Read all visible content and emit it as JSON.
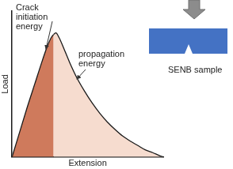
{
  "chart_data": {
    "type": "line",
    "x_label": "Extension",
    "y_label": "Load",
    "xlim": [
      0,
      10
    ],
    "ylim": [
      0,
      10
    ],
    "tick_labels": false,
    "grid": false,
    "series": [
      {
        "color": "#cf7a5c",
        "x": [
          0,
          0.5,
          1,
          1.5,
          2,
          2.3,
          2.6,
          2.75
        ],
        "values": [
          0,
          1.7,
          3.4,
          5.0,
          6.6,
          7.5,
          8.2,
          8.4
        ]
      },
      {
        "color": "#f6dccf",
        "x": [
          2.75,
          2.9,
          3.1,
          3.4,
          3.8,
          4.3,
          4.8,
          5.3,
          5.8,
          6.3,
          6.8,
          7.3,
          7.8,
          8.3,
          8.8,
          9.3,
          9.7,
          10
        ],
        "values": [
          8.4,
          8.5,
          8.2,
          7.5,
          6.5,
          5.4,
          4.5,
          3.7,
          3.0,
          2.4,
          1.9,
          1.45,
          1.1,
          0.8,
          0.5,
          0.3,
          0.12,
          0
        ]
      }
    ],
    "annotations": [
      "Crack initiation energy",
      "propagation energy",
      "SENB sample"
    ]
  }
}
